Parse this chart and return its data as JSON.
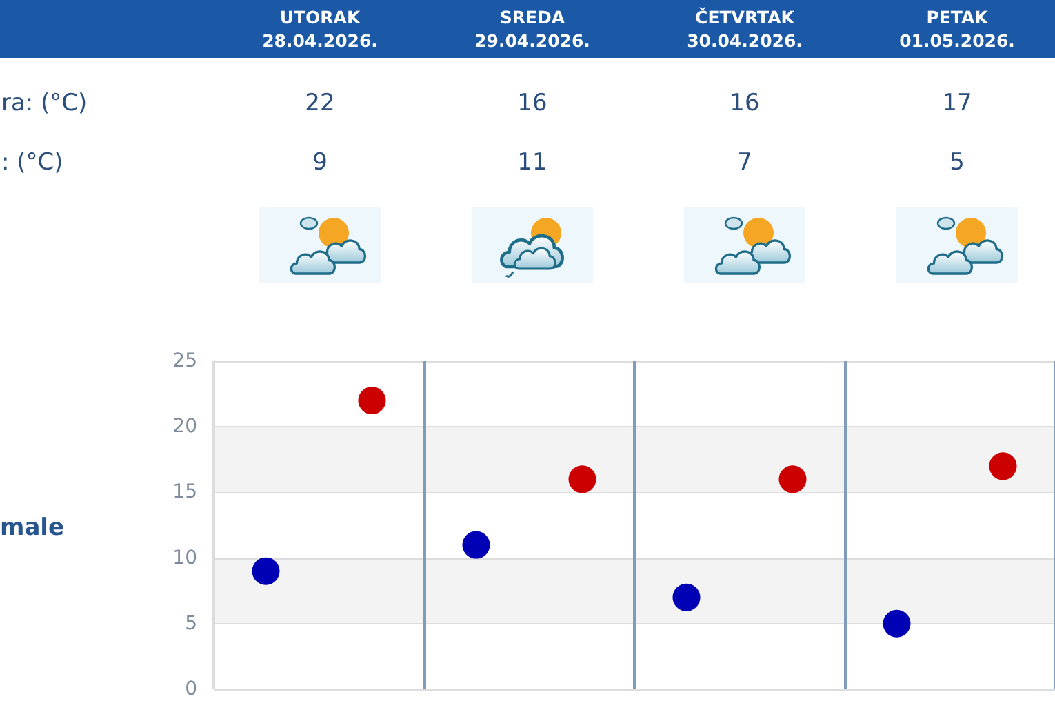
{
  "chart_data": {
    "type": "scatter",
    "categories": [
      null,
      null,
      null,
      null
    ],
    "series": [
      {
        "color": "#cc0000",
        "values": [
          22,
          16,
          16,
          17
        ]
      },
      {
        "color": "#0000b4",
        "values": [
          9,
          11,
          7,
          5
        ]
      }
    ],
    "ylim": [
      0,
      25
    ],
    "yticks": [
      0,
      5,
      10,
      15,
      20,
      25
    ],
    "grid": true,
    "marker": "circle",
    "data_labels": true,
    "annotations": [
      "UTORAK\n28.04.2026.",
      "SREDA\n29.04.2026.",
      "ČETVRTAK\n30.04.2026.",
      "PETAK\n01.05.2026.",
      "ra: (°C)",
      ": (°C)",
      "male"
    ]
  }
}
